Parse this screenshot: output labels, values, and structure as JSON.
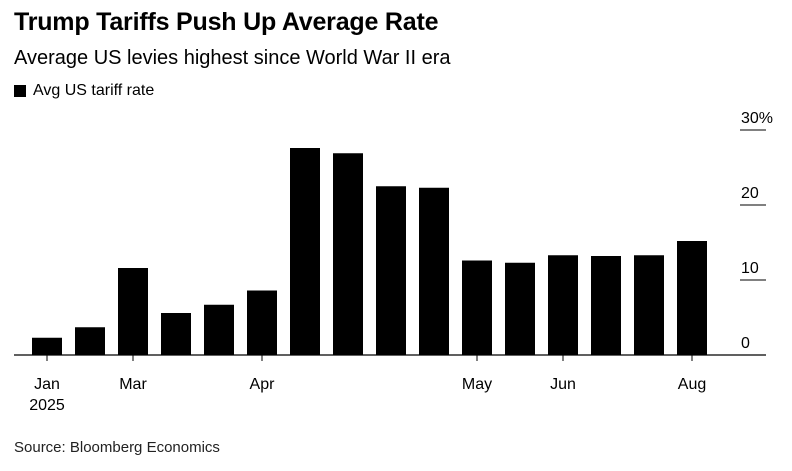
{
  "chart_data": {
    "type": "bar",
    "title": "Trump Tariffs Push Up Average Rate",
    "subtitle": "Average US levies highest since World War II era",
    "legend": {
      "placement": "top-left",
      "entries": [
        "Avg US tariff rate"
      ]
    },
    "series": [
      {
        "name": "Avg US tariff rate",
        "color": "#000000",
        "values": [
          2.3,
          3.7,
          11.6,
          5.6,
          6.7,
          8.6,
          27.6,
          26.9,
          22.5,
          22.3,
          12.6,
          12.3,
          13.3,
          13.2,
          13.3,
          15.2
        ]
      }
    ],
    "x_ticks": [
      {
        "bar_index": 0,
        "label": "Jan",
        "sublabel": "2025"
      },
      {
        "bar_index": 2,
        "label": "Mar",
        "sublabel": ""
      },
      {
        "bar_index": 5,
        "label": "Apr",
        "sublabel": ""
      },
      {
        "bar_index": 10,
        "label": "May",
        "sublabel": ""
      },
      {
        "bar_index": 12,
        "label": "Jun",
        "sublabel": ""
      },
      {
        "bar_index": 15,
        "label": "Aug",
        "sublabel": ""
      }
    ],
    "y_axis": {
      "position": "right",
      "ylim": [
        0,
        30
      ],
      "ticks": [
        {
          "value": 30,
          "label": "30%"
        },
        {
          "value": 20,
          "label": "20"
        },
        {
          "value": 10,
          "label": "10"
        },
        {
          "value": 0,
          "label": "0"
        }
      ]
    },
    "grid": false,
    "source": "Source: Bloomberg Economics"
  }
}
